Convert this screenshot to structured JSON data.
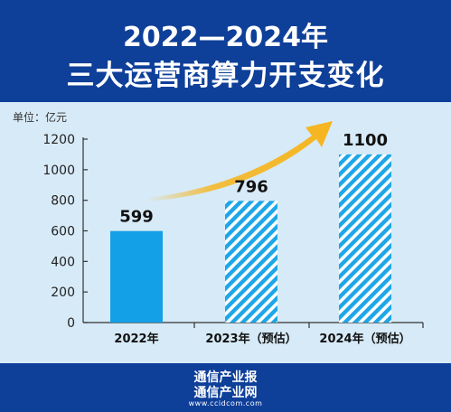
{
  "title_line1": "2022—2024年",
  "title_line2": "三大运营商算力开支变化",
  "unit_label": "单位：亿元",
  "footer": {
    "line1": "通信产业报",
    "line2": "通信产业网",
    "url": "www.ccidcom.com"
  },
  "colors": {
    "header_bg": "#0e3f99",
    "plot_bg": "#d7eaf7",
    "bar_solid": "#13a0e6",
    "bar_hatch": "#1ea6e8",
    "arrow": "#f6b51e"
  },
  "chart_data": {
    "type": "bar",
    "categories": [
      "2022年",
      "2023年（预估）",
      "2024年（预估）"
    ],
    "values": [
      599,
      796,
      1100
    ],
    "value_labels": [
      "599",
      "796",
      "1100"
    ],
    "styles": [
      "solid",
      "hatched",
      "hatched"
    ],
    "ylim": [
      0,
      1200
    ],
    "yticks": [
      0,
      200,
      400,
      600,
      800,
      1000,
      1200
    ],
    "ytick_labels": [
      "0",
      "200",
      "400",
      "600",
      "800",
      "1000",
      "1200"
    ],
    "ylabel": "单位：亿元",
    "grid": false,
    "annotation": "upward-trend-arrow"
  }
}
